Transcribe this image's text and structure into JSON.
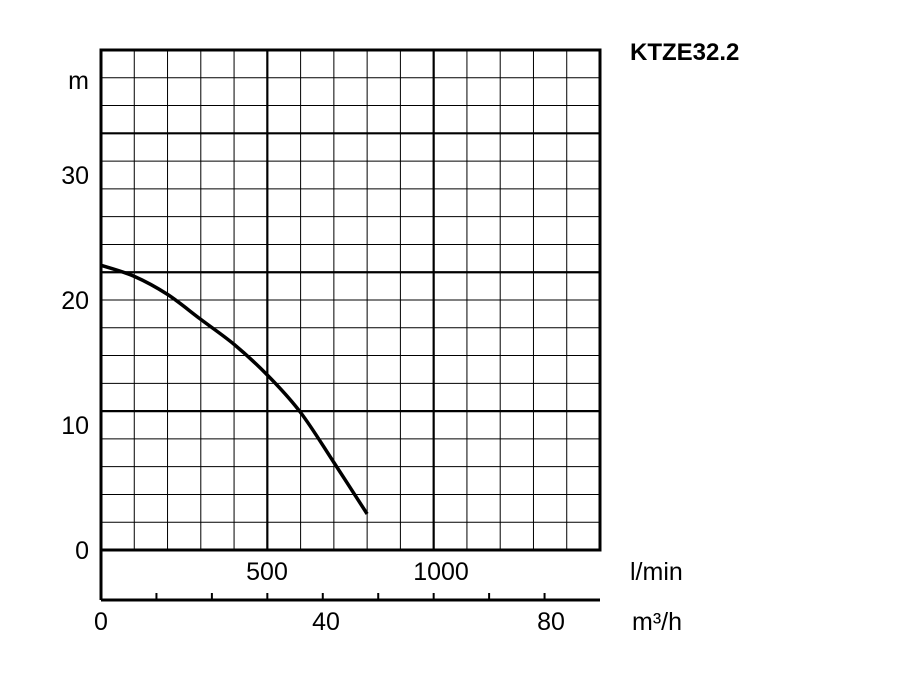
{
  "chart_data": {
    "type": "line",
    "title": "KTZE32.2",
    "ylabel": "m",
    "ylim": [
      0,
      36
    ],
    "y_ticks": [
      "0",
      "10",
      "20",
      "30"
    ],
    "x_axis_primary": {
      "unit": "l/min",
      "range": [
        0,
        1500
      ],
      "tick_values": [
        500,
        1000
      ],
      "tick_labels": [
        "500",
        "1000"
      ]
    },
    "x_axis_secondary": {
      "unit": "m³/h",
      "range": [
        0,
        90
      ],
      "tick_values": [
        0,
        40,
        80
      ],
      "tick_labels": [
        "0",
        "40",
        "80"
      ]
    },
    "grid": true,
    "series": [
      {
        "x": [
          0,
          100,
          200,
          300,
          400,
          500,
          600,
          700,
          800
        ],
        "y": [
          20.5,
          19.7,
          18.4,
          16.6,
          14.8,
          12.6,
          9.9,
          6.3,
          2.6
        ]
      }
    ]
  }
}
